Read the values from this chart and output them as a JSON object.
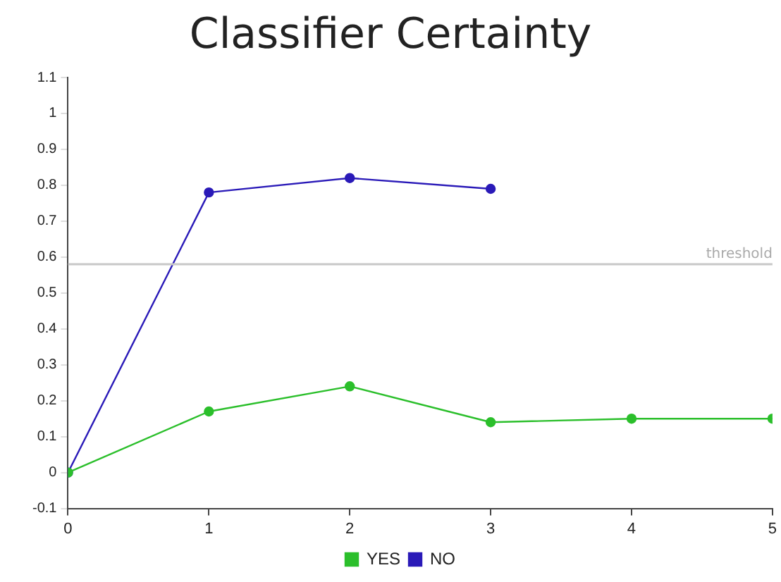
{
  "chart_data": {
    "type": "line",
    "title": "Classifier Certainty",
    "x": [
      0,
      1,
      2,
      3,
      4,
      5
    ],
    "series": [
      {
        "name": "YES",
        "color": "#2bbf2b",
        "values": [
          0,
          0.17,
          0.24,
          0.14,
          0.15,
          0.15
        ]
      },
      {
        "name": "NO",
        "color": "#2a1ab8",
        "values": [
          0,
          0.78,
          0.82,
          0.79,
          null,
          null
        ]
      }
    ],
    "xlim": [
      0,
      5
    ],
    "xticks": [
      0,
      1,
      2,
      3,
      4,
      5
    ],
    "ylim": [
      -0.1,
      1.1
    ],
    "yticks": [
      -0.1,
      0,
      0.1,
      0.2,
      0.3,
      0.4,
      0.5,
      0.6,
      0.7,
      0.8,
      0.9,
      1,
      1.1
    ],
    "ref_lines": [
      {
        "axis": "y",
        "value": 0.58,
        "label": "threshold",
        "color": "#c8c8c8"
      }
    ],
    "grid": false,
    "legend": "bottom",
    "marker": "circle",
    "line_style": "solid"
  }
}
